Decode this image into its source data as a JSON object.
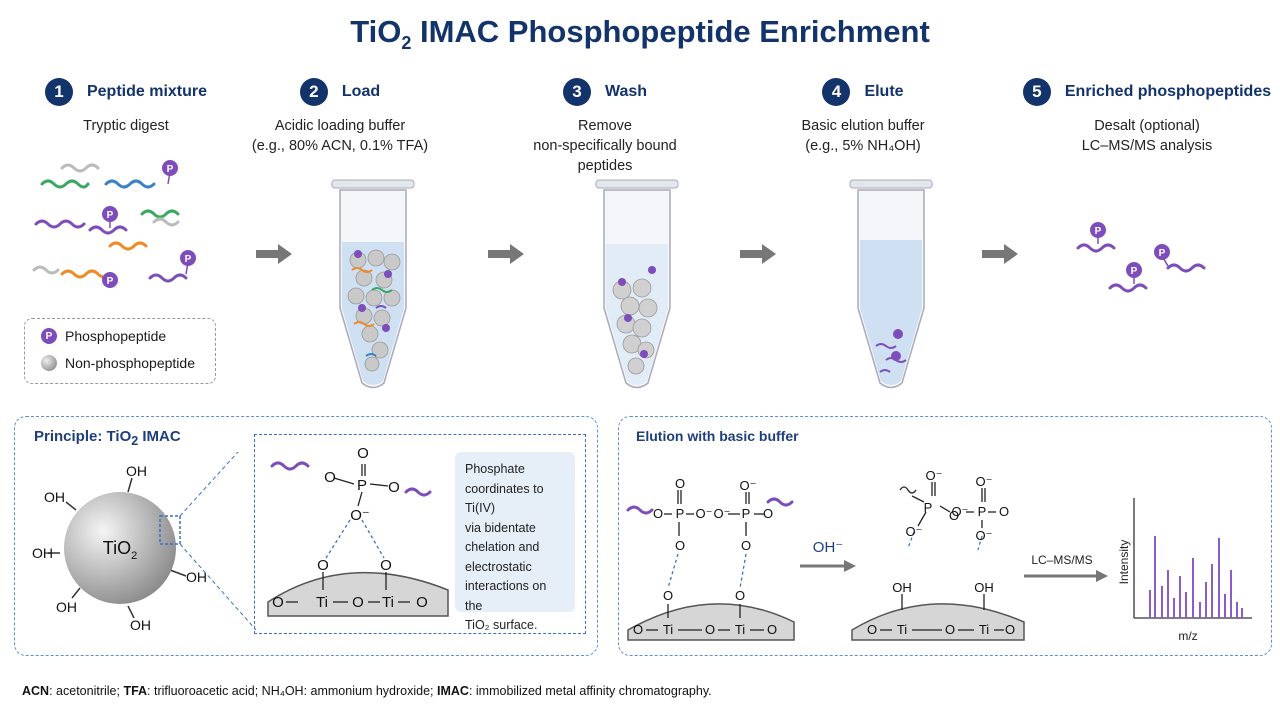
{
  "title": {
    "pre": "TiO",
    "sub": "2",
    "post": " IMAC Phosphopeptide Enrichment"
  },
  "steps": [
    {
      "num": "1",
      "title": "Peptide mixture",
      "desc": [
        "Tryptic digest"
      ]
    },
    {
      "num": "2",
      "title": "Load",
      "desc": [
        "Acidic loading buffer",
        "(e.g., 80% ACN, 0.1% TFA)"
      ]
    },
    {
      "num": "3",
      "title": "Wash",
      "desc": [
        "Remove",
        "non-specifically bound",
        "peptides"
      ]
    },
    {
      "num": "4",
      "title": "Elute",
      "desc": [
        "Basic elution buffer",
        "(e.g., 5% NH₄OH)"
      ]
    },
    {
      "num": "5",
      "title": "Enriched phosphopeptides",
      "desc": [
        "Desalt (optional)",
        "LC–MS/MS analysis"
      ]
    }
  ],
  "legend": {
    "phospho": "Phosphopeptide",
    "nonphospho": "Non-phosphopeptide",
    "p_symbol": "P"
  },
  "principle": {
    "title_pre": "Principle: TiO",
    "title_sub": "2",
    "title_post": " IMAC",
    "bead_label": "TiO",
    "bead_sub": "2",
    "oh": "OH",
    "note_lines": [
      "Phosphate",
      "coordinates to Ti(IV)",
      "via bidentate",
      "chelation and",
      "electrostatic",
      "interactions on the",
      "TiO₂ surface."
    ]
  },
  "elution": {
    "title": "Elution with basic buffer",
    "reagent": "OH⁻",
    "method": "LC–MS/MS",
    "xlabel": "m/z",
    "ylabel": "Intensity"
  },
  "chem": {
    "P": "P",
    "O": "O",
    "Ominus": "O⁻",
    "Ti": "Ti",
    "OH": "OH"
  },
  "footer": [
    {
      "b": "ACN",
      "t": ": acetonitrile; "
    },
    {
      "b": "TFA",
      "t": ": trifluoroacetic acid; NH₄OH: ammonium hydroxide; "
    },
    {
      "b": "IMAC",
      "t": ": immobilized metal affinity chromatography."
    }
  ],
  "colors": {
    "navy": "#13336b",
    "purple": "#7c4dbb",
    "blue_dash": "#5d8fd6",
    "liquid": "#cfe0f3"
  }
}
